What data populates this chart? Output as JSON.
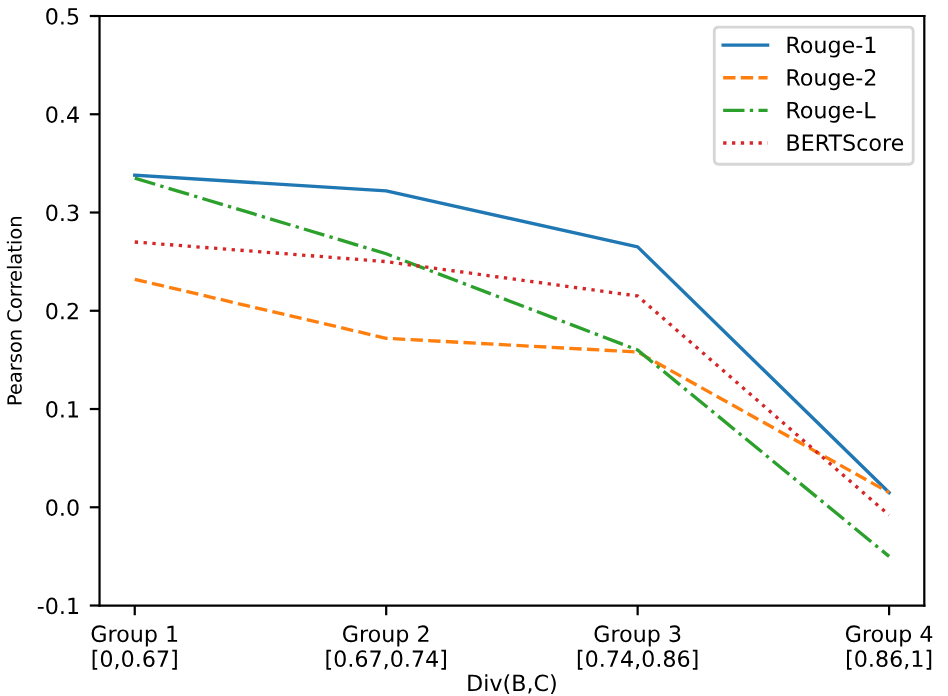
{
  "chart_data": {
    "type": "line",
    "xlabel": "Div(B,C)",
    "ylabel": "Pearson Correlation",
    "categories": [
      "Group 1\n[0,0.67]",
      "Group 2\n[0.67,0.74]",
      "Group 3\n[0.74,0.86]",
      "Group 4\n[0.86,1]"
    ],
    "series": [
      {
        "name": "Rouge-1",
        "color": "#1f77b4",
        "line_style": "solid",
        "values": [
          0.338,
          0.322,
          0.265,
          0.015
        ]
      },
      {
        "name": "Rouge-2",
        "color": "#ff7f0e",
        "line_style": "dashed",
        "values": [
          0.232,
          0.172,
          0.158,
          0.015
        ]
      },
      {
        "name": "Rouge-L",
        "color": "#2ca02c",
        "line_style": "dashdot",
        "values": [
          0.335,
          0.258,
          0.16,
          -0.05
        ]
      },
      {
        "name": "BERTScore",
        "color": "#d62728",
        "line_style": "dotted",
        "values": [
          0.27,
          0.25,
          0.215,
          -0.008
        ]
      }
    ],
    "ylim": [
      -0.1,
      0.5
    ],
    "yticks": [
      -0.1,
      {
        "value": 0,
        "label": "0.0"
      },
      0.1,
      0.2,
      0.3,
      0.4,
      0.5
    ],
    "grid": false,
    "legend": "top right",
    "marker": "none"
  }
}
